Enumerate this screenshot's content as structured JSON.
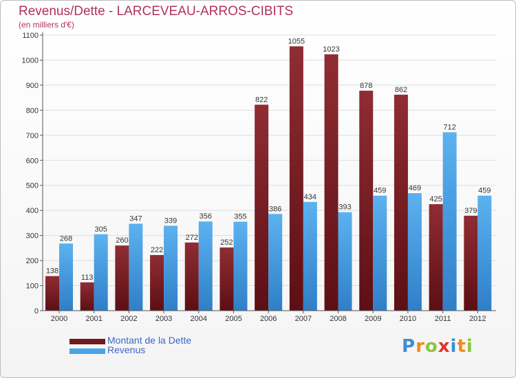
{
  "title": "Revenus/Dette - LARCEVEAU-ARROS-CIBITS",
  "subtitle": "(en milliers d'€)",
  "legend": [
    {
      "label": "Montant de la Dette",
      "color": "#6e1a1f"
    },
    {
      "label": "Revenus",
      "color": "#4aa3e8"
    }
  ],
  "logo": {
    "letters": [
      "P",
      "r",
      "o",
      "x",
      "i",
      "t",
      "i"
    ],
    "colors": [
      "#3a8fd6",
      "#f08a1c",
      "#8cc63f",
      "#e0332c",
      "#3a8fd6",
      "#f08a1c",
      "#8cc63f"
    ]
  },
  "chart_data": {
    "type": "bar",
    "categories": [
      "2000",
      "2001",
      "2002",
      "2003",
      "2004",
      "2005",
      "2006",
      "2007",
      "2008",
      "2009",
      "2010",
      "2011",
      "2012"
    ],
    "series": [
      {
        "name": "Montant de la Dette",
        "color": "#8b2a2f",
        "values": [
          138,
          113,
          260,
          222,
          272,
          252,
          822,
          1055,
          1023,
          878,
          862,
          425,
          379
        ]
      },
      {
        "name": "Revenus",
        "color": "#4aa3e8",
        "values": [
          268,
          305,
          347,
          339,
          356,
          355,
          386,
          434,
          393,
          459,
          469,
          712,
          459
        ]
      }
    ],
    "yticks": [
      "0",
      "100",
      "200",
      "300",
      "400",
      "500",
      "600",
      "700",
      "800",
      "900",
      "1000",
      "1100"
    ],
    "ylim": [
      0,
      1100
    ],
    "grid": true
  }
}
